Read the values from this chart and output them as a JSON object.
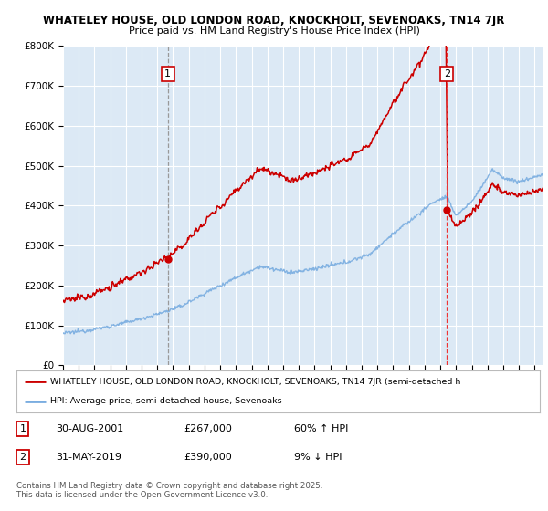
{
  "title1": "WHATELEY HOUSE, OLD LONDON ROAD, KNOCKHOLT, SEVENOAKS, TN14 7JR",
  "title2": "Price paid vs. HM Land Registry's House Price Index (HPI)",
  "xlim_start": 1995.0,
  "xlim_end": 2025.5,
  "ylim_min": 0,
  "ylim_max": 800000,
  "background_color": "#ffffff",
  "chart_bg_color": "#dce9f5",
  "grid_color": "#ffffff",
  "sale1_year": 2001.664,
  "sale1_price": 267000,
  "sale1_label": "1",
  "sale2_year": 2019.414,
  "sale2_price": 390000,
  "sale2_label": "2",
  "legend_line1": "WHATELEY HOUSE, OLD LONDON ROAD, KNOCKHOLT, SEVENOAKS, TN14 7JR (semi-detached h",
  "legend_line2": "HPI: Average price, semi-detached house, Sevenoaks",
  "note1_label": "1",
  "note1_date": "30-AUG-2001",
  "note1_price": "£267,000",
  "note1_hpi": "60% ↑ HPI",
  "note2_label": "2",
  "note2_date": "31-MAY-2019",
  "note2_price": "£390,000",
  "note2_hpi": "9% ↓ HPI",
  "footer": "Contains HM Land Registry data © Crown copyright and database right 2025.\nThis data is licensed under the Open Government Licence v3.0.",
  "red_line_color": "#cc0000",
  "blue_line_color": "#7aade0",
  "sale1_vline_color": "#999999",
  "sale2_vline_color": "#ee3333",
  "label_box_color": "#cc0000"
}
